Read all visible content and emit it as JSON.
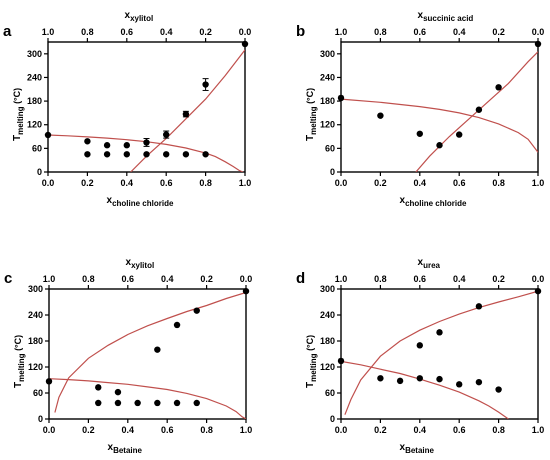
{
  "colors": {
    "marker": "#000000",
    "curve": "#c0504d",
    "axis": "#000000",
    "background": "#ffffff"
  },
  "chart_data": [
    {
      "id": "a",
      "letter": "a",
      "type": "scatter",
      "xlabel": "x",
      "xlabel_sub": "choline chloride",
      "x2label": "x",
      "x2label_sub": "xylitol",
      "ylabel": "T",
      "ylabel_sub": "melting",
      "ylabel_unit": "(°C)",
      "xlim": [
        0,
        1
      ],
      "ylim": [
        0,
        330
      ],
      "xticks": [
        "0.0",
        "0.2",
        "0.4",
        "0.6",
        "0.8",
        "1.0"
      ],
      "x2ticks": [
        "1.0",
        "0.8",
        "0.6",
        "0.4",
        "0.2",
        "0.0"
      ],
      "yticks": [
        "0",
        "60",
        "120",
        "180",
        "240",
        "300"
      ],
      "points": [
        {
          "x": 0.0,
          "y": 94
        },
        {
          "x": 0.2,
          "y": 78
        },
        {
          "x": 0.2,
          "y": 45
        },
        {
          "x": 0.3,
          "y": 68
        },
        {
          "x": 0.3,
          "y": 45
        },
        {
          "x": 0.4,
          "y": 68
        },
        {
          "x": 0.4,
          "y": 45
        },
        {
          "x": 0.5,
          "y": 75,
          "err": 10
        },
        {
          "x": 0.5,
          "y": 45
        },
        {
          "x": 0.6,
          "y": 95,
          "err": 9
        },
        {
          "x": 0.6,
          "y": 45
        },
        {
          "x": 0.7,
          "y": 147,
          "err": 7
        },
        {
          "x": 0.7,
          "y": 45
        },
        {
          "x": 0.8,
          "y": 222,
          "err": 15
        },
        {
          "x": 0.8,
          "y": 45
        },
        {
          "x": 1.0,
          "y": 325
        }
      ],
      "curves": [
        {
          "x": [
            0.0,
            0.1,
            0.2,
            0.3,
            0.4,
            0.5,
            0.6,
            0.7,
            0.8,
            0.85,
            0.9,
            0.94,
            0.97,
            0.99
          ],
          "y": [
            94,
            92,
            89,
            86,
            82,
            77,
            70,
            61,
            48,
            39,
            26,
            14,
            4,
            0
          ]
        },
        {
          "x": [
            0.42,
            0.5,
            0.6,
            0.7,
            0.8,
            0.9,
            1.0
          ],
          "y": [
            0,
            40,
            85,
            135,
            185,
            245,
            310
          ]
        }
      ]
    },
    {
      "id": "b",
      "letter": "b",
      "type": "scatter",
      "xlabel": "x",
      "xlabel_sub": "choline chloride",
      "x2label": "x",
      "x2label_sub": "succinic acid",
      "ylabel": "T",
      "ylabel_sub": "melting",
      "ylabel_unit": "(°C)",
      "xlim": [
        0,
        1
      ],
      "ylim": [
        0,
        330
      ],
      "xticks": [
        "0.0",
        "0.2",
        "0.4",
        "0.6",
        "0.8",
        "1.0"
      ],
      "x2ticks": [
        "1.0",
        "0.8",
        "0.6",
        "0.4",
        "0.2",
        "0.0"
      ],
      "yticks": [
        "0",
        "60",
        "120",
        "180",
        "240",
        "300"
      ],
      "points": [
        {
          "x": 0.0,
          "y": 188
        },
        {
          "x": 0.2,
          "y": 143
        },
        {
          "x": 0.4,
          "y": 97
        },
        {
          "x": 0.5,
          "y": 68
        },
        {
          "x": 0.6,
          "y": 95
        },
        {
          "x": 0.7,
          "y": 158
        },
        {
          "x": 0.8,
          "y": 215
        },
        {
          "x": 1.0,
          "y": 325
        }
      ],
      "curves": [
        {
          "x": [
            0.0,
            0.2,
            0.4,
            0.5,
            0.6,
            0.7,
            0.8,
            0.9,
            0.95,
            1.0
          ],
          "y": [
            185,
            177,
            166,
            159,
            150,
            138,
            122,
            100,
            83,
            50
          ]
        },
        {
          "x": [
            0.38,
            0.45,
            0.55,
            0.65,
            0.75,
            0.85,
            0.95,
            1.0
          ],
          "y": [
            0,
            40,
            90,
            135,
            180,
            225,
            280,
            305
          ]
        }
      ]
    },
    {
      "id": "c",
      "letter": "c",
      "type": "scatter",
      "xlabel": "x",
      "xlabel_sub": "Betaine",
      "x2label": "x",
      "x2label_sub": "xylitol",
      "ylabel": "T",
      "ylabel_sub": "melting",
      "ylabel_unit": "(°C)",
      "xlim": [
        0,
        1
      ],
      "ylim": [
        0,
        300
      ],
      "xticks": [
        "0.0",
        "0.2",
        "0.4",
        "0.6",
        "0.8",
        "1.0"
      ],
      "x2ticks": [
        "1.0",
        "0.8",
        "0.6",
        "0.4",
        "0.2",
        "0.0"
      ],
      "yticks": [
        "0",
        "60",
        "120",
        "180",
        "240",
        "300"
      ],
      "points": [
        {
          "x": 0.0,
          "y": 87
        },
        {
          "x": 0.25,
          "y": 73
        },
        {
          "x": 0.25,
          "y": 37
        },
        {
          "x": 0.35,
          "y": 62
        },
        {
          "x": 0.35,
          "y": 37
        },
        {
          "x": 0.45,
          "y": 37
        },
        {
          "x": 0.55,
          "y": 160
        },
        {
          "x": 0.55,
          "y": 37
        },
        {
          "x": 0.65,
          "y": 217
        },
        {
          "x": 0.65,
          "y": 37
        },
        {
          "x": 0.75,
          "y": 250
        },
        {
          "x": 0.75,
          "y": 37
        },
        {
          "x": 1.0,
          "y": 295
        }
      ],
      "curves": [
        {
          "x": [
            0.0,
            0.1,
            0.2,
            0.3,
            0.4,
            0.5,
            0.6,
            0.7,
            0.8,
            0.9,
            0.95,
            0.98,
            1.0
          ],
          "y": [
            93,
            91,
            88,
            84,
            80,
            74,
            68,
            59,
            47,
            30,
            17,
            5,
            0
          ]
        },
        {
          "x": [
            0.03,
            0.05,
            0.1,
            0.2,
            0.3,
            0.4,
            0.5,
            0.6,
            0.7,
            0.8,
            0.9,
            1.0
          ],
          "y": [
            15,
            50,
            95,
            140,
            170,
            195,
            215,
            232,
            248,
            262,
            278,
            292
          ]
        }
      ]
    },
    {
      "id": "d",
      "letter": "d",
      "type": "scatter",
      "xlabel": "x",
      "xlabel_sub": "Betaine",
      "x2label": "x",
      "x2label_sub": "urea",
      "ylabel": "T",
      "ylabel_sub": "melting",
      "ylabel_unit": "(°C)",
      "xlim": [
        0,
        1
      ],
      "ylim": [
        0,
        300
      ],
      "xticks": [
        "0.0",
        "0.2",
        "0.4",
        "0.6",
        "0.8",
        "1.0"
      ],
      "x2ticks": [
        "1.0",
        "0.8",
        "0.6",
        "0.4",
        "0.2",
        "0.0"
      ],
      "yticks": [
        "0",
        "60",
        "120",
        "180",
        "240",
        "300"
      ],
      "points": [
        {
          "x": 0.0,
          "y": 134
        },
        {
          "x": 0.2,
          "y": 94
        },
        {
          "x": 0.3,
          "y": 88
        },
        {
          "x": 0.4,
          "y": 170
        },
        {
          "x": 0.4,
          "y": 94
        },
        {
          "x": 0.5,
          "y": 200
        },
        {
          "x": 0.5,
          "y": 92
        },
        {
          "x": 0.6,
          "y": 80
        },
        {
          "x": 0.7,
          "y": 260
        },
        {
          "x": 0.7,
          "y": 85
        },
        {
          "x": 0.8,
          "y": 68
        },
        {
          "x": 1.0,
          "y": 295
        }
      ],
      "curves": [
        {
          "x": [
            0.0,
            0.1,
            0.2,
            0.3,
            0.4,
            0.5,
            0.6,
            0.7,
            0.75,
            0.8,
            0.85
          ],
          "y": [
            133,
            125,
            115,
            105,
            92,
            78,
            62,
            42,
            30,
            16,
            0
          ]
        },
        {
          "x": [
            0.02,
            0.05,
            0.1,
            0.2,
            0.3,
            0.4,
            0.5,
            0.6,
            0.7,
            0.8,
            0.9,
            1.0
          ],
          "y": [
            10,
            45,
            90,
            145,
            180,
            205,
            225,
            242,
            257,
            270,
            282,
            295
          ]
        }
      ]
    }
  ]
}
